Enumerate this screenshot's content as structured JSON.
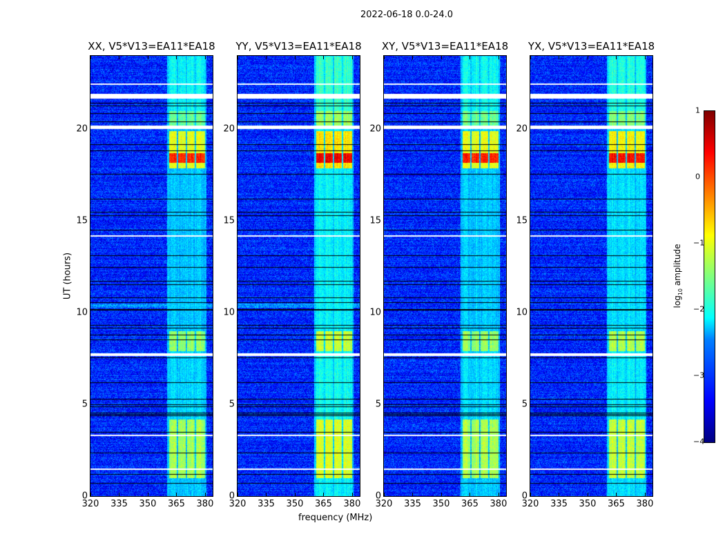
{
  "chart_data": {
    "type": "heatmap",
    "title": "2022-06-18 0.0-24.0",
    "xlabel": "frequency (MHz)",
    "ylabel": "UT (hours)",
    "xlim": [
      320,
      384
    ],
    "ylim": [
      0,
      24
    ],
    "xticks": [
      320,
      335,
      350,
      365,
      380
    ],
    "yticks": [
      0,
      5,
      10,
      15,
      20
    ],
    "panels": [
      {
        "title": "XX, V5*V13=EA11*EA18",
        "gain": 0.0
      },
      {
        "title": "YY, V5*V13=EA11*EA18",
        "gain": 0.25
      },
      {
        "title": "XY, V5*V13=EA11*EA18",
        "gain": 0.0
      },
      {
        "title": "YX, V5*V13=EA11*EA18",
        "gain": 0.15
      }
    ],
    "colorbar": {
      "label_main": "log",
      "label_sub": "10",
      "label_rest": " amplitude",
      "range": [
        -4,
        1
      ],
      "ticks": [
        1,
        0,
        -1,
        -2,
        -3,
        -4
      ],
      "colormap": "jet"
    },
    "background_level": -3.2,
    "rfi_subbands_mhz": [
      [
        361,
        365
      ],
      [
        365.8,
        369.8
      ],
      [
        370.6,
        374.4
      ],
      [
        375.2,
        380
      ]
    ],
    "rfi_time_ranges": [
      {
        "start": 0.0,
        "end": 1.0,
        "level": -2.4
      },
      {
        "start": 1.0,
        "end": 4.2,
        "level": -1.3
      },
      {
        "start": 4.2,
        "end": 7.9,
        "level": -2.3
      },
      {
        "start": 7.9,
        "end": 9.0,
        "level": -1.4
      },
      {
        "start": 9.0,
        "end": 17.9,
        "level": -2.4
      },
      {
        "start": 17.9,
        "end": 19.9,
        "level": -1.0
      },
      {
        "start": 18.2,
        "end": 18.7,
        "level": 0.2
      },
      {
        "start": 20.2,
        "end": 21.0,
        "level": -1.6
      },
      {
        "start": 21.0,
        "end": 24.0,
        "level": -2.1
      }
    ],
    "flagged_hours": [
      [
        1.45,
        1.52
      ],
      [
        3.3,
        3.35
      ],
      [
        7.65,
        7.8
      ],
      [
        14.15,
        14.22
      ],
      [
        20.05,
        20.22
      ],
      [
        21.7,
        21.95
      ],
      [
        22.45,
        22.5
      ]
    ]
  }
}
